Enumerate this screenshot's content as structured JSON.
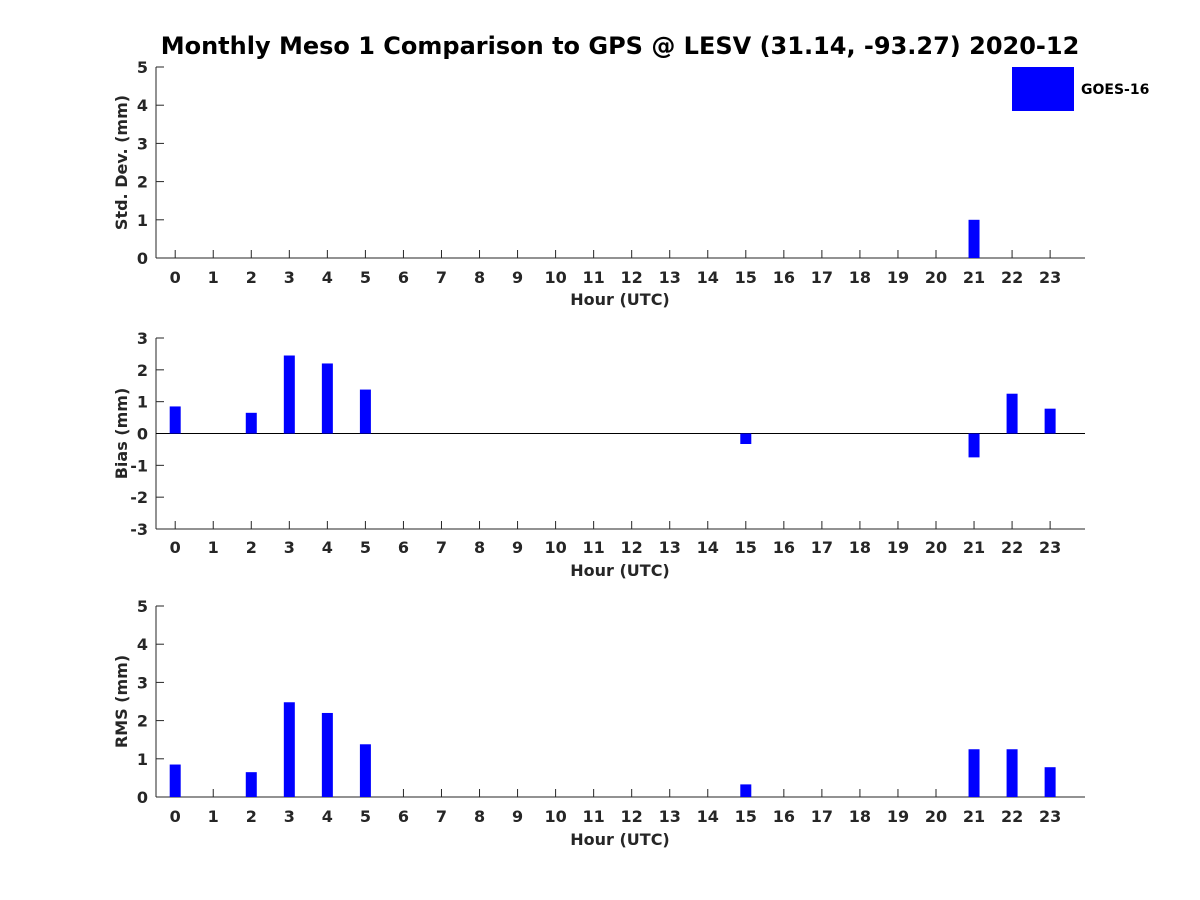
{
  "colors": {
    "bar": "#0000ff",
    "axis": "#262626",
    "background": "#ffffff"
  },
  "chart_data": {
    "type": "bar",
    "title": "Monthly Meso 1 Comparison to GPS @ LESV (31.14, -93.27) 2020-12",
    "legend": {
      "placement": "top-right",
      "entries": [
        "GOES-16"
      ]
    },
    "x": [
      0,
      1,
      2,
      3,
      4,
      5,
      6,
      7,
      8,
      9,
      10,
      11,
      12,
      13,
      14,
      15,
      16,
      17,
      18,
      19,
      20,
      21,
      22,
      23
    ],
    "xlabel": "Hour (UTC)",
    "panels": [
      {
        "id": "std",
        "ylabel": "Std. Dev. (mm)",
        "ylim": [
          0,
          5
        ],
        "yticks": [
          0,
          1,
          2,
          3,
          4,
          5
        ],
        "series": [
          {
            "name": "GOES-16",
            "values": [
              null,
              null,
              null,
              null,
              null,
              null,
              null,
              null,
              null,
              null,
              null,
              null,
              null,
              null,
              null,
              null,
              null,
              null,
              null,
              null,
              null,
              1.0,
              null,
              null
            ]
          }
        ]
      },
      {
        "id": "bias",
        "ylabel": "Bias (mm)",
        "ylim": [
          -3,
          3
        ],
        "yticks": [
          -3,
          -2,
          -1,
          0,
          1,
          2,
          3
        ],
        "zero_line": true,
        "series": [
          {
            "name": "GOES-16",
            "values": [
              0.85,
              null,
              0.65,
              2.45,
              2.2,
              1.38,
              null,
              null,
              null,
              null,
              null,
              null,
              null,
              null,
              null,
              -0.33,
              null,
              null,
              null,
              null,
              null,
              -0.75,
              1.25,
              0.78
            ]
          }
        ]
      },
      {
        "id": "rms",
        "ylabel": "RMS (mm)",
        "ylim": [
          0,
          5
        ],
        "yticks": [
          0,
          1,
          2,
          3,
          4,
          5
        ],
        "series": [
          {
            "name": "GOES-16",
            "values": [
              0.85,
              null,
              0.65,
              2.48,
              2.2,
              1.38,
              null,
              null,
              null,
              null,
              null,
              null,
              null,
              null,
              null,
              0.33,
              null,
              null,
              null,
              null,
              null,
              1.25,
              1.25,
              0.78
            ]
          }
        ]
      }
    ]
  }
}
